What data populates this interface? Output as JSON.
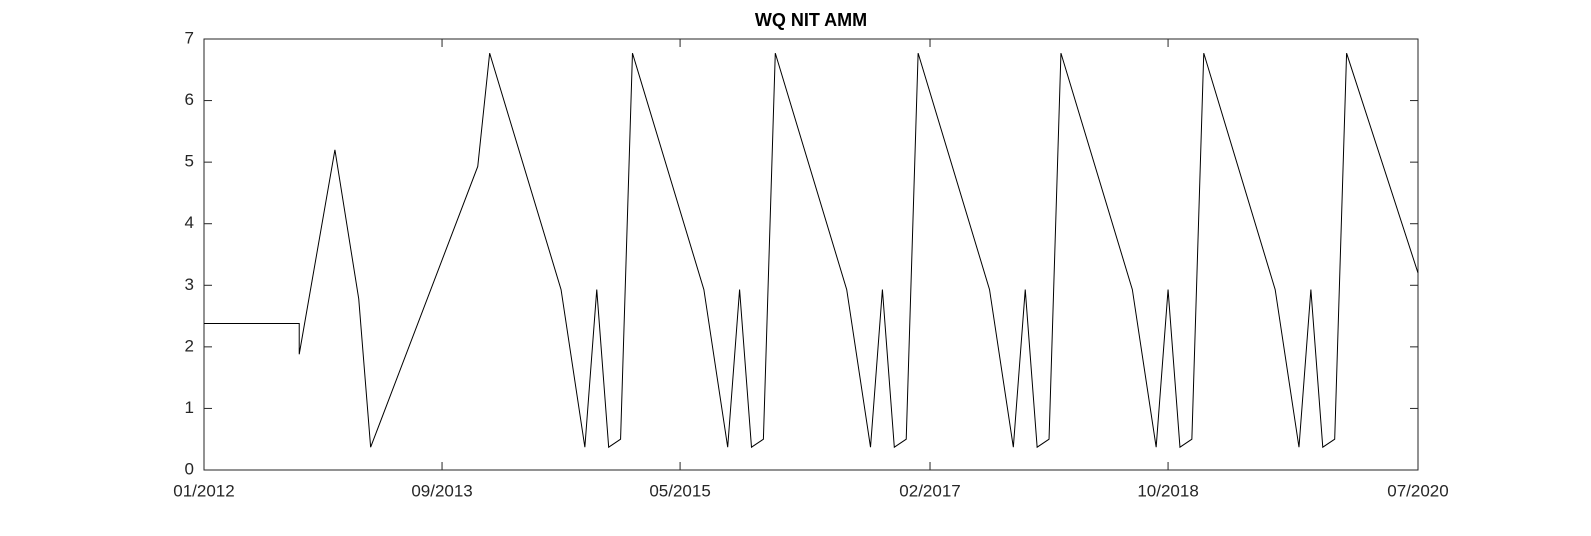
{
  "chart_data": {
    "type": "line",
    "title": "WQ NIT AMM",
    "x": [
      "2012-01",
      "2012-09",
      "2012-09",
      "2012-12",
      "2013-02",
      "2013-03",
      "2013-12",
      "2014-01",
      "2014-07",
      "2014-09",
      "2014-10",
      "2014-11",
      "2014-12",
      "2015-01",
      "2015-07",
      "2015-09",
      "2015-10",
      "2015-11",
      "2015-12",
      "2016-01",
      "2016-07",
      "2016-09",
      "2016-10",
      "2016-11",
      "2016-12",
      "2017-01",
      "2017-07",
      "2017-09",
      "2017-10",
      "2017-11",
      "2017-12",
      "2018-01",
      "2018-07",
      "2018-09",
      "2018-10",
      "2018-11",
      "2018-12",
      "2019-01",
      "2019-07",
      "2019-09",
      "2019-10",
      "2019-11",
      "2019-12",
      "2020-01",
      "2020-07"
    ],
    "series": [
      {
        "color": "#000000",
        "values": [
          2.38,
          2.38,
          1.88,
          5.2,
          2.78,
          0.37,
          4.93,
          6.77,
          2.93,
          0.37,
          2.93,
          0.37,
          0.5,
          6.77,
          2.93,
          0.37,
          2.93,
          0.37,
          0.5,
          6.77,
          2.93,
          0.37,
          2.93,
          0.37,
          0.5,
          6.77,
          2.93,
          0.37,
          2.93,
          0.37,
          0.5,
          6.77,
          2.93,
          0.37,
          2.93,
          0.37,
          0.5,
          6.77,
          2.93,
          0.37,
          2.93,
          0.37,
          0.5,
          6.77,
          3.2
        ]
      }
    ],
    "xlim": [
      "2012-01",
      "2020-07"
    ],
    "xticks": [
      {
        "value": "2012-01",
        "label": "01/2012"
      },
      {
        "value": "2013-09",
        "label": "09/2013"
      },
      {
        "value": "2015-05",
        "label": "05/2015"
      },
      {
        "value": "2017-02",
        "label": "02/2017"
      },
      {
        "value": "2018-10",
        "label": "10/2018"
      },
      {
        "value": "2020-07",
        "label": "07/2020"
      }
    ],
    "ylim": [
      0,
      7
    ],
    "yticks": [
      0,
      1,
      2,
      3,
      4,
      5,
      6,
      7
    ],
    "grid": false
  }
}
